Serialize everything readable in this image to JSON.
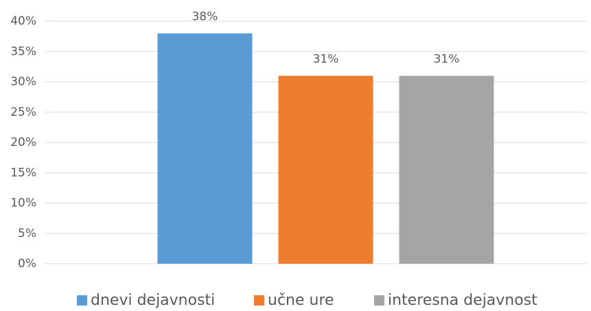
{
  "chart_data": {
    "type": "bar",
    "categories": [
      null
    ],
    "series": [
      {
        "name": "dnevi dejavnosti",
        "color": "#5b9bd5",
        "values": [
          38
        ],
        "value_labels": [
          "38%"
        ]
      },
      {
        "name": "učne ure",
        "color": "#ed7d31",
        "values": [
          31
        ],
        "value_labels": [
          "31%"
        ]
      },
      {
        "name": "interesna dejavnost",
        "color": "#a5a5a5",
        "values": [
          31
        ],
        "value_labels": [
          "31%"
        ]
      }
    ],
    "ylim": [
      0,
      40
    ],
    "yticks": [
      {
        "value": 0,
        "label": "0%"
      },
      {
        "value": 5,
        "label": "5%"
      },
      {
        "value": 10,
        "label": "10%"
      },
      {
        "value": 15,
        "label": "15%"
      },
      {
        "value": 20,
        "label": "20%"
      },
      {
        "value": 25,
        "label": "25%"
      },
      {
        "value": 30,
        "label": "30%"
      },
      {
        "value": 35,
        "label": "35%"
      },
      {
        "value": 40,
        "label": "40%"
      }
    ],
    "grid": true,
    "legend": "bottom"
  }
}
